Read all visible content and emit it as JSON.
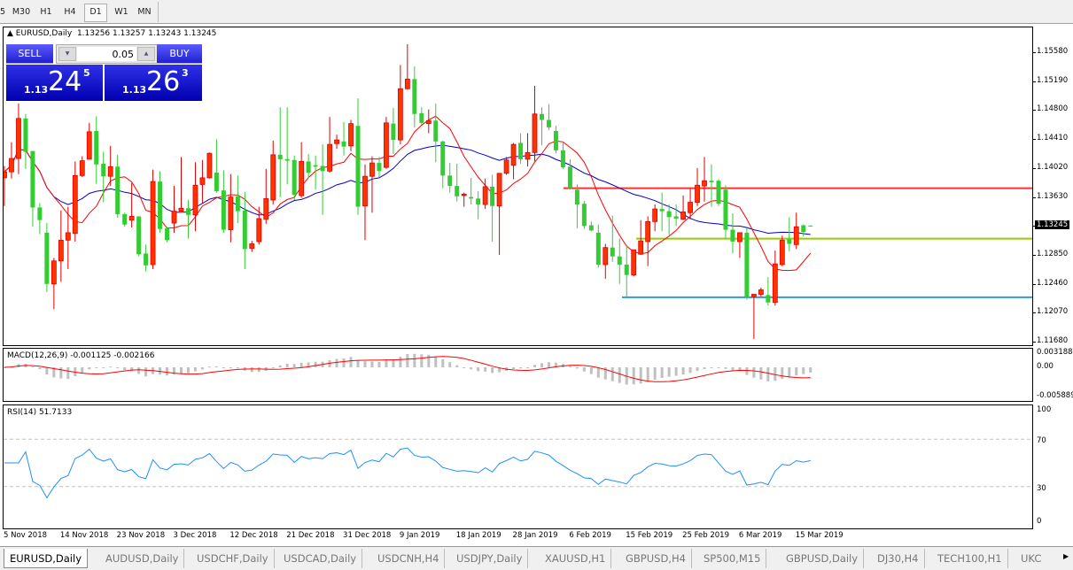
{
  "toolbar": {
    "timeframes": [
      {
        "label": "5"
      },
      {
        "label": "M30"
      },
      {
        "label": "H1"
      },
      {
        "label": "H4"
      },
      {
        "label": "D1",
        "active": true
      },
      {
        "label": "W1"
      },
      {
        "label": "MN"
      }
    ]
  },
  "chart": {
    "title": "EURUSD,Daily",
    "ohlc_text": "1.13256 1.13257 1.13243 1.13245",
    "current_price": "1.13245",
    "price_labels": [
      "1.15580",
      "1.15190",
      "1.14800",
      "1.14410",
      "1.14020",
      "1.13630",
      "1.13245",
      "1.12850",
      "1.12460",
      "1.12070",
      "1.11680"
    ],
    "colors": {
      "bull": "#ff3300",
      "bear": "#33cc33",
      "ma_fast": "#ff0000",
      "ma_slow": "#0000cc"
    },
    "candles": [
      [
        1.139,
        1.1406,
        1.1352,
        1.1398
      ],
      [
        1.1398,
        1.1438,
        1.1389,
        1.1416
      ],
      [
        1.1416,
        1.149,
        1.1395,
        1.147
      ],
      [
        1.147,
        1.1476,
        1.1402,
        1.1425
      ],
      [
        1.1426,
        1.1426,
        1.1324,
        1.135
      ],
      [
        1.135,
        1.1356,
        1.1314,
        1.1333
      ],
      [
        1.1316,
        1.1329,
        1.1236,
        1.1247
      ],
      [
        1.1247,
        1.1282,
        1.1213,
        1.1278
      ],
      [
        1.1278,
        1.1346,
        1.125,
        1.1306
      ],
      [
        1.1306,
        1.1351,
        1.1267,
        1.1316
      ],
      [
        1.1315,
        1.1412,
        1.1304,
        1.1393
      ],
      [
        1.1393,
        1.1419,
        1.1391,
        1.1413
      ],
      [
        1.1415,
        1.1464,
        1.1415,
        1.1452
      ],
      [
        1.1453,
        1.1473,
        1.1382,
        1.1408
      ],
      [
        1.1409,
        1.1425,
        1.1357,
        1.1392
      ],
      [
        1.1392,
        1.1433,
        1.1379,
        1.1405
      ],
      [
        1.1405,
        1.1421,
        1.1336,
        1.1341
      ],
      [
        1.1341,
        1.1343,
        1.1324,
        1.1327
      ],
      [
        1.1333,
        1.1383,
        1.1323,
        1.1338
      ],
      [
        1.1338,
        1.1338,
        1.1284,
        1.1287
      ],
      [
        1.1288,
        1.13,
        1.1264,
        1.1272
      ],
      [
        1.1273,
        1.1401,
        1.1267,
        1.1385
      ],
      [
        1.1385,
        1.1399,
        1.1316,
        1.1321
      ],
      [
        1.1322,
        1.1324,
        1.1303,
        1.1306
      ],
      [
        1.1329,
        1.1379,
        1.1316,
        1.1345
      ],
      [
        1.1345,
        1.1418,
        1.1345,
        1.1349
      ],
      [
        1.1349,
        1.136,
        1.1308,
        1.134
      ],
      [
        1.134,
        1.1411,
        1.1318,
        1.138
      ],
      [
        1.1381,
        1.1414,
        1.1356,
        1.139
      ],
      [
        1.139,
        1.1424,
        1.1389,
        1.1423
      ],
      [
        1.1397,
        1.1442,
        1.137,
        1.1372
      ],
      [
        1.1373,
        1.14,
        1.1316,
        1.132
      ],
      [
        1.132,
        1.1395,
        1.1303,
        1.1364
      ],
      [
        1.1365,
        1.1393,
        1.1329,
        1.1345
      ],
      [
        1.1346,
        1.1371,
        1.1267,
        1.1294
      ],
      [
        1.1295,
        1.1305,
        1.129,
        1.1301
      ],
      [
        1.1304,
        1.1351,
        1.13,
        1.1335
      ],
      [
        1.1334,
        1.1402,
        1.1328,
        1.1362
      ],
      [
        1.136,
        1.144,
        1.1354,
        1.1421
      ],
      [
        1.1421,
        1.1485,
        1.1364,
        1.1415
      ],
      [
        1.1415,
        1.1485,
        1.1381,
        1.1413
      ],
      [
        1.1414,
        1.142,
        1.136,
        1.1367
      ],
      [
        1.1366,
        1.1438,
        1.1363,
        1.1412
      ],
      [
        1.1412,
        1.1422,
        1.139,
        1.1397
      ],
      [
        1.1407,
        1.142,
        1.1374,
        1.1405
      ],
      [
        1.1406,
        1.1435,
        1.134,
        1.1399
      ],
      [
        1.1399,
        1.1472,
        1.1397,
        1.1435
      ],
      [
        1.1436,
        1.1448,
        1.1429,
        1.1441
      ],
      [
        1.1439,
        1.1465,
        1.142,
        1.1432
      ],
      [
        1.1433,
        1.1468,
        1.1426,
        1.1463
      ],
      [
        1.146,
        1.1497,
        1.134,
        1.1351
      ],
      [
        1.1352,
        1.1408,
        1.1306,
        1.1392
      ],
      [
        1.1392,
        1.1419,
        1.1343,
        1.141
      ],
      [
        1.141,
        1.1418,
        1.1391,
        1.1399
      ],
      [
        1.1404,
        1.1472,
        1.1402,
        1.1464
      ],
      [
        1.1463,
        1.1484,
        1.1422,
        1.1441
      ],
      [
        1.1441,
        1.1542,
        1.1435,
        1.151
      ],
      [
        1.151,
        1.157,
        1.1509,
        1.1523
      ],
      [
        1.1523,
        1.154,
        1.1458,
        1.1476
      ],
      [
        1.1477,
        1.1485,
        1.1462,
        1.1464
      ],
      [
        1.1463,
        1.1482,
        1.145,
        1.1467
      ],
      [
        1.1467,
        1.149,
        1.1411,
        1.1439
      ],
      [
        1.1439,
        1.144,
        1.1376,
        1.1393
      ],
      [
        1.1393,
        1.141,
        1.137,
        1.1379
      ],
      [
        1.1379,
        1.1409,
        1.1358,
        1.1365
      ],
      [
        1.1366,
        1.137,
        1.1351,
        1.1368
      ],
      [
        1.1364,
        1.139,
        1.1354,
        1.1362
      ],
      [
        1.1362,
        1.1372,
        1.1334,
        1.1354
      ],
      [
        1.1354,
        1.1389,
        1.1348,
        1.1378
      ],
      [
        1.1378,
        1.1394,
        1.1304,
        1.1352
      ],
      [
        1.1352,
        1.1396,
        1.1286,
        1.1396
      ],
      [
        1.1396,
        1.1418,
        1.1394,
        1.1414
      ],
      [
        1.1407,
        1.1437,
        1.1388,
        1.1435
      ],
      [
        1.1437,
        1.145,
        1.1409,
        1.1415
      ],
      [
        1.1415,
        1.145,
        1.1405,
        1.1424
      ],
      [
        1.1424,
        1.1514,
        1.1412,
        1.1476
      ],
      [
        1.1476,
        1.1485,
        1.1434,
        1.1468
      ],
      [
        1.1468,
        1.1489,
        1.1454,
        1.1458
      ],
      [
        1.1453,
        1.146,
        1.1423,
        1.1427
      ],
      [
        1.1427,
        1.1439,
        1.1402,
        1.1404
      ],
      [
        1.1405,
        1.1415,
        1.1374,
        1.1376
      ],
      [
        1.1374,
        1.1381,
        1.1322,
        1.1354
      ],
      [
        1.1355,
        1.1359,
        1.1321,
        1.1325
      ],
      [
        1.1326,
        1.1331,
        1.1318,
        1.1319
      ],
      [
        1.1316,
        1.1327,
        1.1269,
        1.1273
      ],
      [
        1.1273,
        1.1301,
        1.1254,
        1.1296
      ],
      [
        1.1296,
        1.1339,
        1.1277,
        1.1284
      ],
      [
        1.1284,
        1.1308,
        1.1247,
        1.1273
      ],
      [
        1.1273,
        1.13,
        1.123,
        1.1259
      ],
      [
        1.1259,
        1.1293,
        1.1257,
        1.1293
      ],
      [
        1.1287,
        1.1333,
        1.1286,
        1.1305
      ],
      [
        1.1304,
        1.1338,
        1.1271,
        1.1331
      ],
      [
        1.1331,
        1.1354,
        1.1318,
        1.1348
      ],
      [
        1.1348,
        1.137,
        1.1318,
        1.1345
      ],
      [
        1.1345,
        1.1354,
        1.1313,
        1.1337
      ],
      [
        1.1338,
        1.1354,
        1.1325,
        1.1335
      ],
      [
        1.1334,
        1.1366,
        1.1333,
        1.1344
      ],
      [
        1.1343,
        1.1375,
        1.1334,
        1.1357
      ],
      [
        1.1357,
        1.1403,
        1.1352,
        1.138
      ],
      [
        1.1379,
        1.1418,
        1.1358,
        1.1386
      ],
      [
        1.1386,
        1.1408,
        1.1351,
        1.1384
      ],
      [
        1.1386,
        1.1388,
        1.1352,
        1.1355
      ],
      [
        1.1374,
        1.138,
        1.1308,
        1.132
      ],
      [
        1.132,
        1.1342,
        1.1288,
        1.1304
      ],
      [
        1.1304,
        1.1316,
        1.1282,
        1.1316
      ],
      [
        1.1316,
        1.1322,
        1.1226,
        1.1229
      ],
      [
        1.123,
        1.1233,
        1.1173,
        1.1233
      ],
      [
        1.1233,
        1.1242,
        1.123,
        1.1239
      ],
      [
        1.1232,
        1.1256,
        1.1218,
        1.1222
      ],
      [
        1.1222,
        1.1292,
        1.1218,
        1.1274
      ],
      [
        1.1273,
        1.1312,
        1.1271,
        1.1306
      ],
      [
        1.1307,
        1.1337,
        1.1291,
        1.1301
      ],
      [
        1.13,
        1.1343,
        1.1294,
        1.1324
      ],
      [
        1.1326,
        1.1327,
        1.1311,
        1.1317
      ],
      [
        1.13256,
        1.13257,
        1.13243,
        1.13245
      ]
    ],
    "hlines": [
      {
        "price": 1.1376,
        "color": "#ff3333"
      },
      {
        "price": 1.1308,
        "color": "#99cc00"
      },
      {
        "price": 1.1229,
        "color": "#3399dd"
      }
    ]
  },
  "trade_panel": {
    "sell_label": "SELL",
    "buy_label": "BUY",
    "lot": "0.05",
    "sell_price": {
      "prefix": "1.13",
      "big": "24",
      "sup": "5"
    },
    "buy_price": {
      "prefix": "1.13",
      "big": "26",
      "sup": "3"
    }
  },
  "macd": {
    "title": "MACD(12,26,9) -0.001125 -0.002166",
    "labels": [
      "0.003188",
      "0.00",
      "-0.005889"
    ],
    "hist_color": "#c0c0c0",
    "signal_color": "#ff0000"
  },
  "rsi": {
    "title": "RSI(14) 51.7133",
    "labels": [
      "100",
      "70",
      "30",
      "0"
    ],
    "line_color": "#1e90ff"
  },
  "time_labels": [
    "5 Nov 2018",
    "14 Nov 2018",
    "23 Nov 2018",
    "3 Dec 2018",
    "12 Dec 2018",
    "21 Dec 2018",
    "31 Dec 2018",
    "9 Jan 2019",
    "18 Jan 2019",
    "28 Jan 2019",
    "6 Feb 2019",
    "15 Feb 2019",
    "25 Feb 2019",
    "6 Mar 2019",
    "15 Mar 2019"
  ],
  "tabs": [
    {
      "label": "EURUSD,Daily",
      "active": true
    },
    {
      "label": "AUDUSD,Daily"
    },
    {
      "label": "USDCHF,Daily"
    },
    {
      "label": "USDCAD,Daily"
    },
    {
      "label": "USDCNH,H4"
    },
    {
      "label": "USDJPY,Daily"
    },
    {
      "label": "XAUUSD,H1"
    },
    {
      "label": "GBPUSD,H4"
    },
    {
      "label": "SP500,M15"
    },
    {
      "label": "GBPUSD,Daily"
    },
    {
      "label": "DJ30,H4"
    },
    {
      "label": "TECH100,H1"
    },
    {
      "label": "UKC"
    }
  ]
}
